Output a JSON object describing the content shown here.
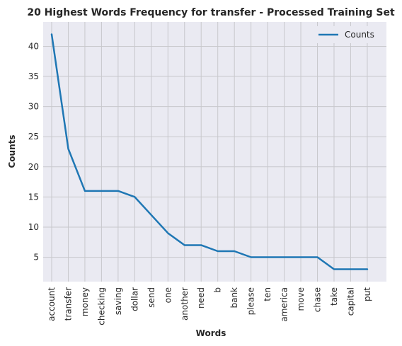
{
  "chart_data": {
    "type": "line",
    "title": "20 Highest Words Frequency for transfer - Processed Training Set",
    "xlabel": "Words",
    "ylabel": "Counts",
    "categories": [
      "account",
      "transfer",
      "money",
      "checking",
      "saving",
      "dollar",
      "send",
      "one",
      "another",
      "need",
      "b",
      "bank",
      "please",
      "ten",
      "america",
      "move",
      "chase",
      "take",
      "capital",
      "put"
    ],
    "series": [
      {
        "name": "Counts",
        "values": [
          42,
          23,
          16,
          16,
          16,
          15,
          12,
          9,
          7,
          7,
          6,
          6,
          5,
          5,
          5,
          5,
          5,
          3,
          3,
          3
        ],
        "color": "#1f77b4"
      }
    ],
    "yticks": [
      5,
      10,
      15,
      20,
      25,
      30,
      35,
      40
    ],
    "ylim": [
      0.95,
      44.05
    ],
    "grid": true,
    "legend_position": "top-right",
    "background_color": "#eaeaf2"
  }
}
